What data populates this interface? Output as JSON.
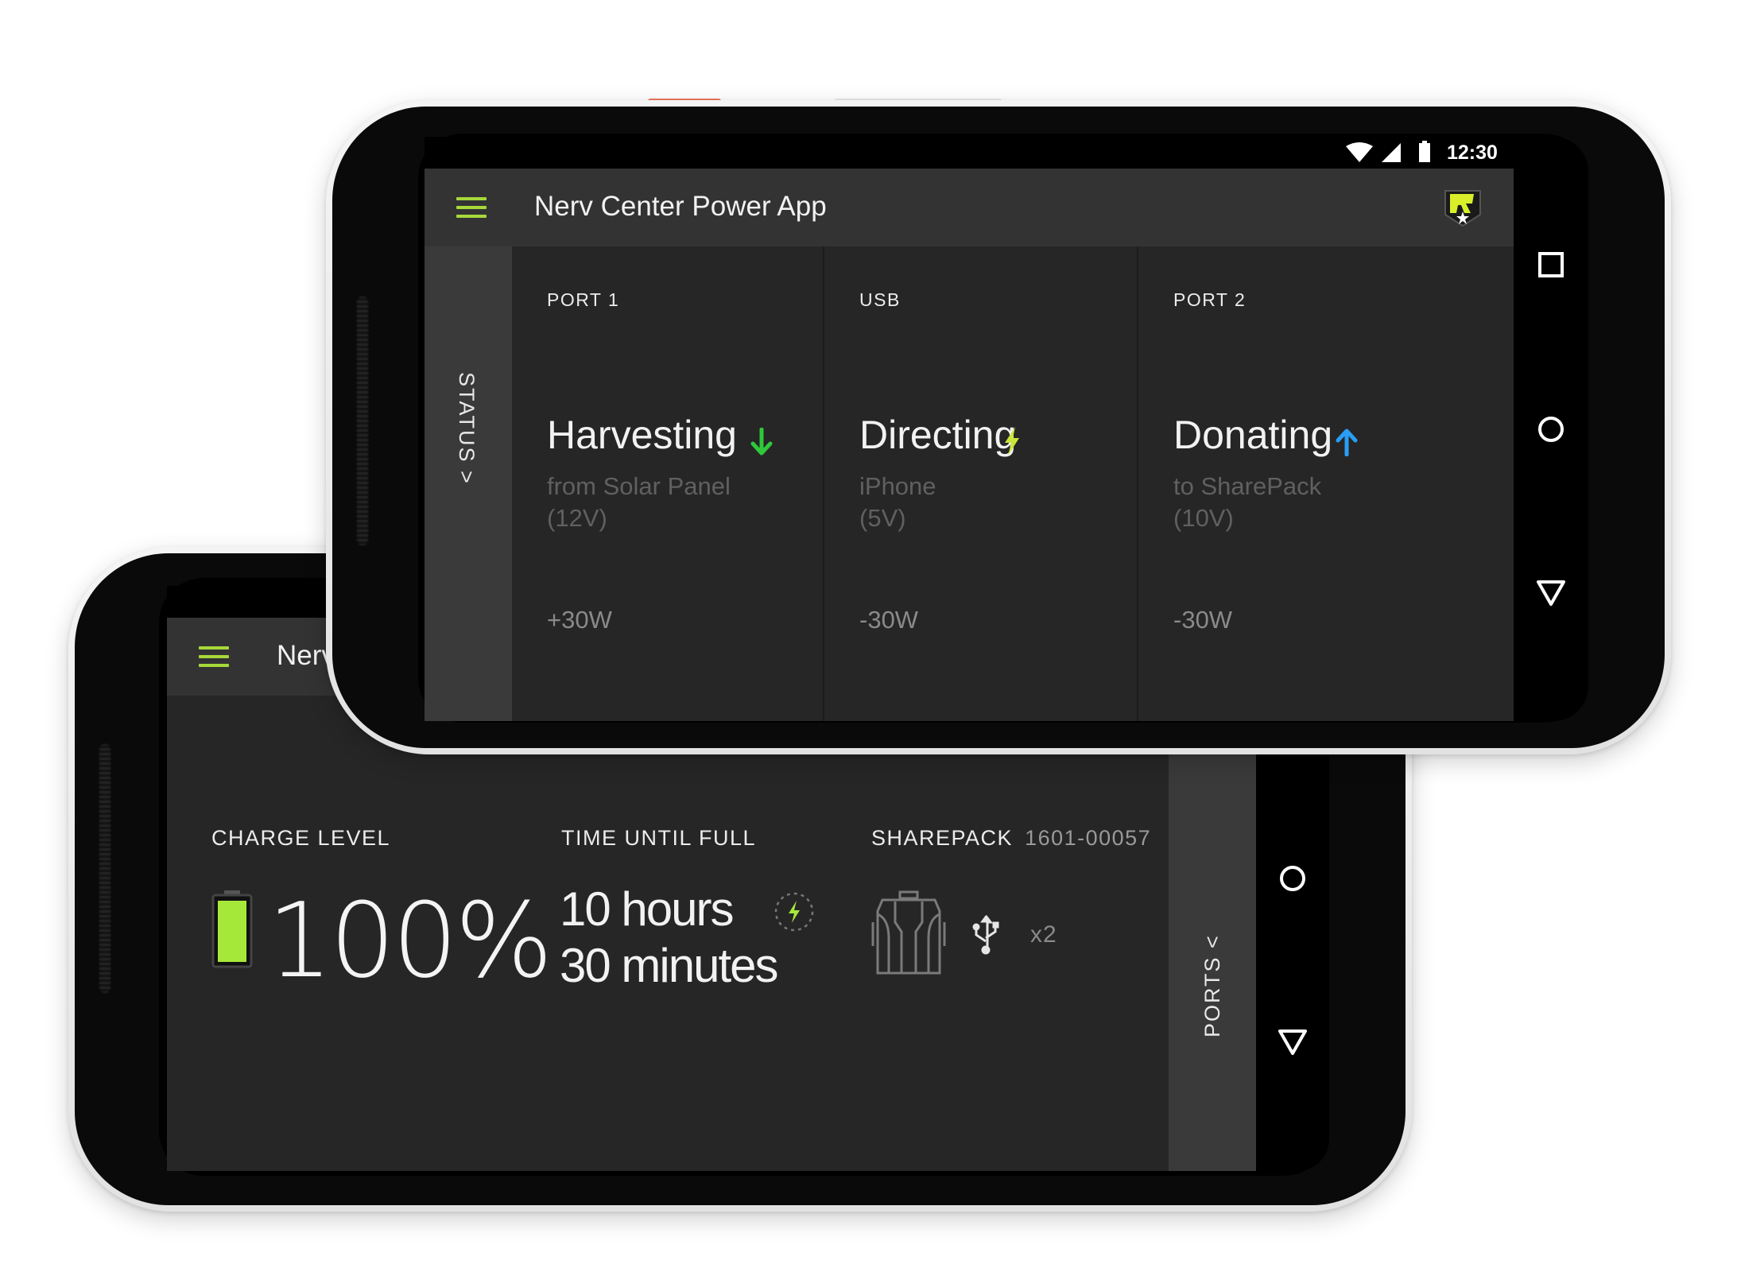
{
  "app": {
    "title": "Nerv Center Power App",
    "title_truncated": "Nerv"
  },
  "status_bar": {
    "time": "12:30",
    "icons": [
      "wifi-icon",
      "signal-icon",
      "battery-icon"
    ]
  },
  "colors": {
    "accent_green": "#a6d83a",
    "harvest_green": "#2fc83a",
    "direct_yellow": "#c8e63a",
    "donate_blue": "#2a9df4",
    "screen_bg": "#262626",
    "appbar_bg": "#333333"
  },
  "front_screen": {
    "side_tab_label": "STATUS >",
    "ports": [
      {
        "label": "PORT 1",
        "mode": "Harvesting",
        "mode_icon": "arrow-down-icon",
        "sub1": "from Solar Panel",
        "sub2": "(12V)",
        "watts": "+30W"
      },
      {
        "label": "USB",
        "mode": "Directing",
        "mode_icon": "lightning-icon",
        "sub1": "iPhone",
        "sub2": "(5V)",
        "watts": "-30W"
      },
      {
        "label": "PORT 2",
        "mode": "Donating",
        "mode_icon": "arrow-up-icon",
        "sub1": "to SharePack",
        "sub2": "(10V)",
        "watts": "-30W"
      }
    ],
    "nav_buttons": [
      "recents-square-icon",
      "home-circle-icon",
      "back-triangle-icon"
    ]
  },
  "back_screen": {
    "side_tab_label": "PORTS <",
    "charge": {
      "label": "CHARGE LEVEL",
      "value": "100%",
      "level_fraction": 1.0
    },
    "time_until_full": {
      "label": "TIME UNTIL FULL",
      "line1": "10 hours",
      "line2": "30 minutes"
    },
    "sharepack": {
      "label": "SHAREPACK",
      "serial": "1601-00057",
      "usb_count": "x2"
    },
    "nav_buttons": [
      "home-circle-icon",
      "back-triangle-icon"
    ]
  }
}
